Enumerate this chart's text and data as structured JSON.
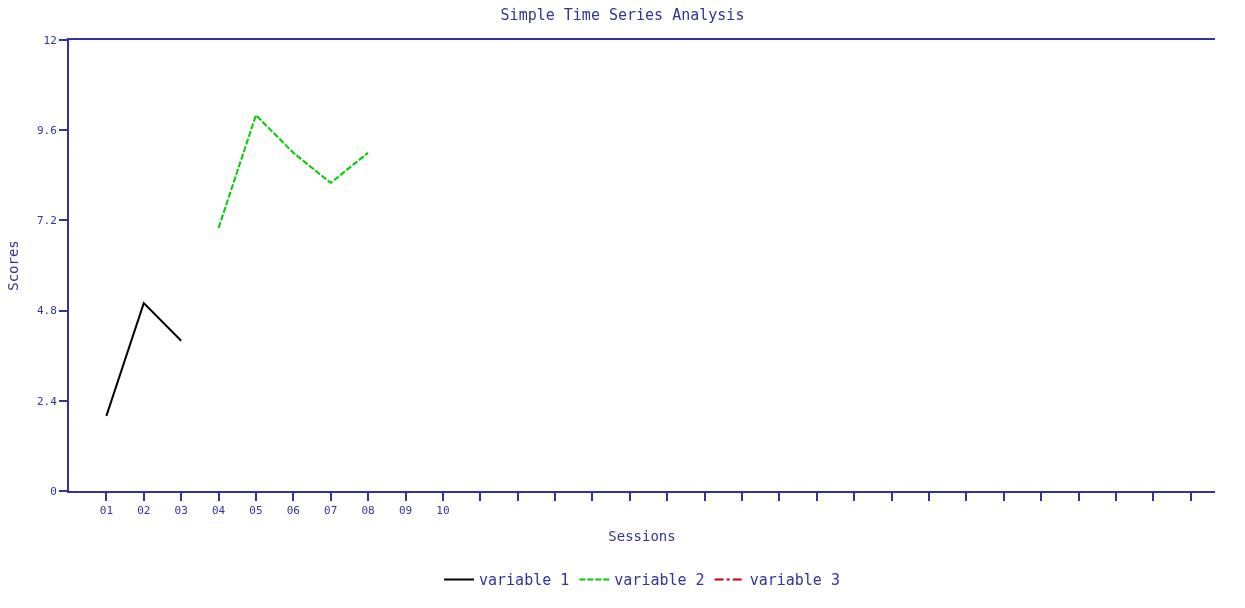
{
  "chart_data": {
    "type": "line",
    "title": "Simple Time Series Analysis",
    "xlabel": "Sessions",
    "ylabel": "Scores",
    "categories": [
      "01",
      "02",
      "03",
      "04",
      "05",
      "06",
      "07",
      "08",
      "09",
      "10",
      null,
      null,
      null,
      null,
      null,
      null,
      null,
      null,
      null,
      null,
      null,
      null,
      null,
      null,
      null,
      null,
      null,
      null,
      null,
      null
    ],
    "series": [
      {
        "name": "variable 1",
        "color": "#000000",
        "line_style": "solid",
        "values": [
          2.0,
          5.0,
          4.0,
          null,
          null,
          null,
          null,
          null,
          null,
          null,
          null,
          null,
          null,
          null,
          null,
          null,
          null,
          null,
          null,
          null,
          null,
          null,
          null,
          null,
          null,
          null,
          null,
          null,
          null,
          null
        ]
      },
      {
        "name": "variable 2",
        "color": "#00cc00",
        "line_style": "dashed",
        "values": [
          null,
          null,
          null,
          7.0,
          10.0,
          9.0,
          8.2,
          9.0,
          null,
          null,
          null,
          null,
          null,
          null,
          null,
          null,
          null,
          null,
          null,
          null,
          null,
          null,
          null,
          null,
          null,
          null,
          null,
          null,
          null,
          null
        ]
      },
      {
        "name": "variable 3",
        "color": "#cc0000",
        "line_style": "dashdot",
        "values": [
          null,
          null,
          null,
          null,
          null,
          null,
          null,
          null,
          null,
          null,
          null,
          null,
          null,
          null,
          null,
          null,
          null,
          null,
          null,
          null,
          null,
          null,
          null,
          null,
          null,
          null,
          null,
          null,
          null,
          null
        ]
      }
    ],
    "ylim": [
      0,
      12
    ],
    "yticks": [
      0,
      2.4,
      4.8,
      7.2,
      9.6,
      12
    ],
    "legend": "bottom",
    "marker": "none"
  }
}
